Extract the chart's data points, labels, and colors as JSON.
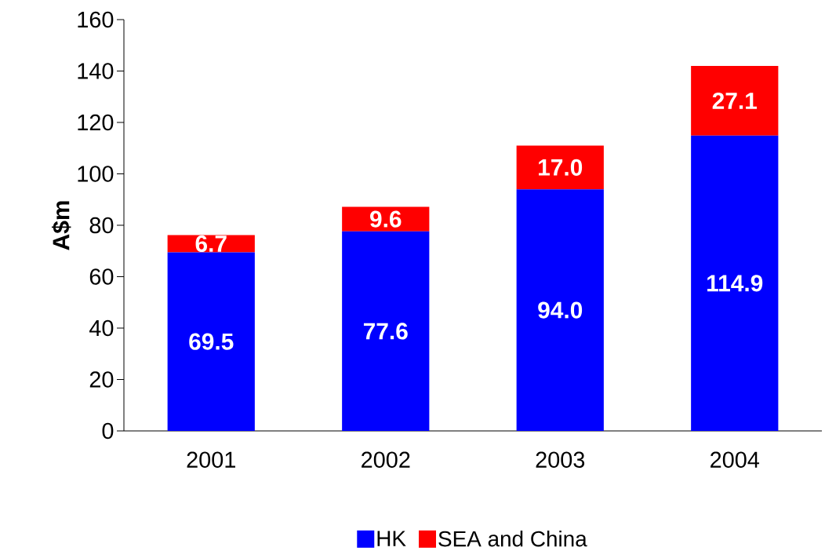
{
  "chart_data": {
    "type": "bar",
    "stacked": true,
    "ylabel": "A$m",
    "categories": [
      "2001",
      "2002",
      "2003",
      "2004"
    ],
    "series": [
      {
        "name": "HK",
        "color": "#0000ff",
        "values": [
          69.5,
          77.6,
          94.0,
          114.9
        ],
        "value_labels": [
          "69.5",
          "77.6",
          "94.0",
          "114.9"
        ]
      },
      {
        "name": "SEA and China",
        "color": "#ff0000",
        "values": [
          6.7,
          9.6,
          17.0,
          27.1
        ],
        "value_labels": [
          "6.7",
          "9.6",
          "17.0",
          "27.1"
        ]
      }
    ],
    "ylim": [
      0,
      160
    ],
    "yticks": [
      0,
      20,
      40,
      60,
      80,
      100,
      120,
      140,
      160
    ],
    "legend": "bottom",
    "grid": false
  }
}
